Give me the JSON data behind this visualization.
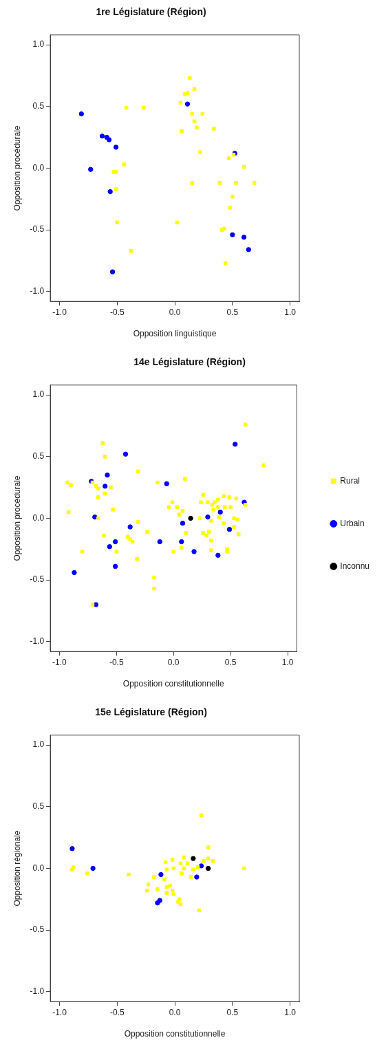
{
  "chart_data": [
    {
      "type": "scatter",
      "title": "1re Législature (Région)",
      "xlabel": "Opposition linguistique",
      "ylabel": "Opposition procédurale",
      "xlim": [
        -1.08,
        1.08
      ],
      "ylim": [
        -1.08,
        1.08
      ],
      "xticks": [
        {
          "value": -1,
          "label": "-1.0"
        },
        {
          "value": -0.5,
          "label": "-0.5"
        },
        {
          "value": 0,
          "label": "0.0"
        },
        {
          "value": 0.5,
          "label": "0.5"
        },
        {
          "value": 1,
          "label": "1.0"
        }
      ],
      "yticks": [
        {
          "value": -1,
          "label": "-1.0"
        },
        {
          "value": -0.5,
          "label": "-0.5"
        },
        {
          "value": 0,
          "label": "0.0"
        },
        {
          "value": 0.5,
          "label": "0.5"
        },
        {
          "value": 1,
          "label": "1.0"
        }
      ],
      "legend": false,
      "series": [
        {
          "color": "#ffff00",
          "marker": "square",
          "x": [
            -0.42,
            -0.27,
            -0.44,
            -0.53,
            -0.51,
            -0.51,
            -0.5,
            -0.38,
            0.13,
            0.17,
            0.09,
            0.11,
            0.05,
            0.15,
            0.24,
            0.17,
            0.19,
            0.06,
            0.34,
            0.22,
            0.47,
            0.51,
            0.6,
            0.39,
            0.15,
            0.53,
            0.69,
            0.5,
            0.48,
            0.02,
            0.41,
            0.43,
            0.44
          ],
          "values": [
            0.49,
            0.49,
            0.03,
            -0.03,
            -0.03,
            -0.17,
            -0.44,
            -0.67,
            0.73,
            0.64,
            0.6,
            0.61,
            0.53,
            0.44,
            0.44,
            0.38,
            0.33,
            0.3,
            0.32,
            0.13,
            0.08,
            0.11,
            0.01,
            -0.12,
            -0.12,
            -0.12,
            -0.12,
            -0.23,
            -0.32,
            -0.44,
            -0.5,
            -0.49,
            -0.77
          ]
        },
        {
          "color": "#0000ff",
          "marker": "circle",
          "x": [
            -0.81,
            -0.63,
            -0.59,
            -0.57,
            -0.51,
            -0.73,
            -0.56,
            -0.54,
            0.11,
            0.52,
            0.5,
            0.6,
            0.64
          ],
          "values": [
            0.44,
            0.26,
            0.25,
            0.23,
            0.17,
            -0.01,
            -0.19,
            -0.84,
            0.52,
            0.12,
            -0.54,
            -0.56,
            -0.66
          ]
        }
      ]
    },
    {
      "type": "scatter",
      "title": "14e Législature (Région)",
      "xlabel": "Opposition constitutionnelle",
      "ylabel": "Opposition procédurale",
      "xlim": [
        -1.08,
        1.08
      ],
      "ylim": [
        -1.08,
        1.08
      ],
      "xticks": [
        {
          "value": -1,
          "label": "-1.0"
        },
        {
          "value": -0.5,
          "label": "-0.5"
        },
        {
          "value": 0,
          "label": "0.0"
        },
        {
          "value": 0.5,
          "label": "0.5"
        },
        {
          "value": 1,
          "label": "1.0"
        }
      ],
      "yticks": [
        {
          "value": -1,
          "label": "-1.0"
        },
        {
          "value": -0.5,
          "label": "-0.5"
        },
        {
          "value": 0,
          "label": "0.0"
        },
        {
          "value": 0.5,
          "label": "0.5"
        },
        {
          "value": 1,
          "label": "1.0"
        }
      ],
      "legend": "right",
      "series": [
        {
          "name": "Rural",
          "color": "#ffff00",
          "marker": "square",
          "x": [
            -0.62,
            -0.6,
            -0.31,
            -0.93,
            -0.9,
            -0.71,
            -0.68,
            -0.66,
            -0.55,
            -0.6,
            -0.66,
            -0.53,
            -0.92,
            -0.66,
            -0.31,
            -0.61,
            -0.23,
            -0.4,
            -0.38,
            -0.36,
            -0.8,
            -0.5,
            -0.32,
            -0.17,
            -0.17,
            -0.71,
            -0.14,
            0.1,
            -0.01,
            -0.04,
            0.03,
            0.08,
            0.05,
            0.11,
            0.0,
            0.07,
            0.23,
            0.26,
            0.24,
            0.3,
            0.34,
            0.36,
            0.39,
            0.44,
            0.49,
            0.55,
            0.35,
            0.39,
            0.45,
            0.5,
            0.63,
            0.4,
            0.33,
            0.44,
            0.53,
            0.56,
            0.53,
            0.57,
            0.26,
            0.31,
            0.29,
            0.33,
            0.33,
            0.47,
            0.47,
            0.63,
            0.79
          ],
          "values": [
            0.61,
            0.5,
            0.38,
            0.29,
            0.27,
            0.29,
            0.26,
            0.24,
            0.25,
            0.2,
            0.17,
            0.07,
            0.05,
            0.0,
            -0.03,
            -0.14,
            -0.11,
            -0.15,
            -0.17,
            -0.19,
            -0.27,
            -0.27,
            -0.33,
            -0.48,
            -0.57,
            -0.7,
            0.29,
            0.32,
            0.13,
            0.09,
            0.09,
            0.06,
            0.03,
            -0.12,
            -0.27,
            -0.24,
            0.0,
            0.19,
            0.13,
            0.13,
            0.11,
            0.13,
            0.15,
            0.18,
            0.17,
            0.16,
            0.07,
            0.09,
            0.09,
            0.09,
            0.11,
            0.01,
            -0.02,
            -0.04,
            0.0,
            -0.01,
            -0.07,
            -0.13,
            -0.12,
            -0.11,
            -0.14,
            -0.18,
            -0.26,
            -0.25,
            -0.27,
            0.76,
            0.43
          ]
        },
        {
          "name": "Urbain",
          "color": "#0000ff",
          "marker": "circle",
          "x": [
            -0.42,
            -0.72,
            -0.58,
            -0.6,
            -0.69,
            -0.87,
            -0.68,
            -0.38,
            -0.51,
            -0.56,
            -0.51,
            -0.12,
            -0.06,
            0.08,
            0.07,
            0.18,
            0.3,
            0.41,
            0.49,
            0.39,
            0.54,
            0.62
          ],
          "values": [
            0.52,
            0.3,
            0.35,
            0.26,
            0.01,
            -0.44,
            -0.7,
            -0.07,
            -0.19,
            -0.23,
            -0.39,
            -0.19,
            0.28,
            -0.04,
            -0.19,
            -0.27,
            0.01,
            0.05,
            -0.09,
            -0.3,
            0.6,
            0.13
          ]
        },
        {
          "name": "Inconnu",
          "color": "#000000",
          "marker": "circle",
          "x": [
            0.15
          ],
          "values": [
            0.0
          ]
        }
      ]
    },
    {
      "type": "scatter",
      "title": "15e Législature (Région)",
      "xlabel": "Opposition constitutionnelle",
      "ylabel": "Opposition régionale",
      "xlim": [
        -1.08,
        1.08
      ],
      "ylim": [
        -1.08,
        1.08
      ],
      "xticks": [
        {
          "value": -1,
          "label": "-1.0"
        },
        {
          "value": -0.5,
          "label": "-0.5"
        },
        {
          "value": 0,
          "label": "0.0"
        },
        {
          "value": 0.5,
          "label": "0.5"
        },
        {
          "value": 1,
          "label": "1.0"
        }
      ],
      "yticks": [
        {
          "value": -1,
          "label": "-1.0"
        },
        {
          "value": -0.5,
          "label": "-0.5"
        },
        {
          "value": 0,
          "label": "0.0"
        },
        {
          "value": 0.5,
          "label": "0.5"
        },
        {
          "value": 1,
          "label": "1.0"
        }
      ],
      "legend": false,
      "series": [
        {
          "color": "#ffff00",
          "marker": "square",
          "x": [
            -0.89,
            -0.88,
            -0.76,
            -0.4,
            0.23,
            0.29,
            0.6,
            -0.08,
            -0.02,
            0.08,
            -0.07,
            -0.01,
            0.05,
            0.11,
            0.08,
            0.2,
            0.25,
            0.29,
            0.33,
            0.16,
            0.06,
            0.14,
            -0.18,
            -0.09,
            -0.23,
            -0.24,
            -0.15,
            -0.07,
            -0.04,
            -0.07,
            -0.02,
            -0.01,
            0.04,
            0.05,
            0.03,
            0.21
          ],
          "values": [
            -0.01,
            0.01,
            -0.04,
            -0.05,
            0.43,
            0.17,
            0.0,
            0.05,
            0.07,
            0.09,
            -0.01,
            0.0,
            0.04,
            0.04,
            0.0,
            0.01,
            0.06,
            0.08,
            0.06,
            -0.01,
            -0.04,
            -0.07,
            -0.07,
            -0.09,
            -0.13,
            -0.18,
            -0.17,
            -0.15,
            -0.14,
            -0.2,
            -0.18,
            -0.21,
            -0.25,
            -0.29,
            -0.27,
            -0.34
          ]
        },
        {
          "color": "#0000ff",
          "marker": "circle",
          "x": [
            -0.89,
            -0.71,
            -0.12,
            -0.15,
            -0.13,
            0.19,
            0.23
          ],
          "values": [
            0.16,
            0.0,
            -0.05,
            -0.28,
            -0.26,
            -0.07,
            0.02
          ]
        },
        {
          "color": "#000000",
          "marker": "circle",
          "x": [
            0.16,
            0.29
          ],
          "values": [
            0.08,
            0.0
          ]
        }
      ]
    }
  ]
}
